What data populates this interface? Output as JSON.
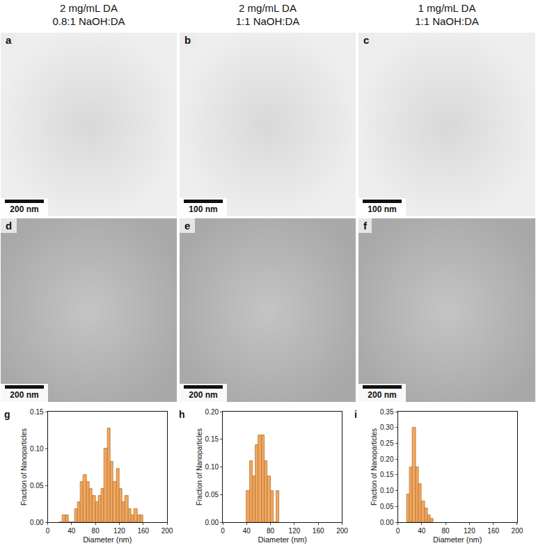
{
  "headers": [
    {
      "lines": [
        "2 mg/mL DA",
        "0.8:1 NaOH:DA"
      ]
    },
    {
      "lines": [
        "2 mg/mL DA",
        "1:1 NaOH:DA"
      ]
    },
    {
      "lines": [
        "1 mg/mL DA",
        "1:1 NaOH:DA"
      ]
    }
  ],
  "images": [
    {
      "panel": "a",
      "scale_bar": "200 nm"
    },
    {
      "panel": "b",
      "scale_bar": "100 nm"
    },
    {
      "panel": "c",
      "scale_bar": "100 nm"
    },
    {
      "panel": "d",
      "scale_bar": "200 nm"
    },
    {
      "panel": "e",
      "scale_bar": "200 nm"
    },
    {
      "panel": "f",
      "scale_bar": "200 nm"
    }
  ],
  "chart_data": [
    {
      "type": "bar",
      "panel": "g",
      "x_label": "Diameter (nm)",
      "y_label": "Fraction of Nanoparticles",
      "bins": [
        20,
        25,
        30,
        35,
        40,
        45,
        50,
        55,
        60,
        65,
        70,
        75,
        80,
        85,
        90,
        95,
        100,
        105,
        110,
        115,
        120,
        125,
        130,
        135,
        140,
        145,
        150,
        155,
        160
      ],
      "values": [
        0,
        0.009,
        0.009,
        0,
        0,
        0.018,
        0.027,
        0.055,
        0.064,
        0.055,
        0.045,
        0.036,
        0.027,
        0.036,
        0.045,
        0.1,
        0.127,
        0.082,
        0.055,
        0.073,
        0.045,
        0.027,
        0.036,
        0.018,
        0.009,
        0.018,
        0.009,
        0.009
      ],
      "color": "#f0a860",
      "xlim": [
        0,
        200
      ],
      "xticks": [
        0,
        40,
        80,
        120,
        160,
        200
      ],
      "ylim": [
        0,
        0.15
      ],
      "yticks": [
        {
          "value": 0,
          "label": "0.00"
        },
        {
          "value": 0.05,
          "label": "0.05"
        },
        {
          "value": 0.1,
          "label": "0.10"
        },
        {
          "value": 0.15,
          "label": "0.15"
        }
      ],
      "grid": false
    },
    {
      "type": "bar",
      "panel": "h",
      "x_label": "Diameter (nm)",
      "y_label": "Fraction of Nanoparticles",
      "bins": [
        40,
        45,
        50,
        55,
        60,
        65,
        70,
        75,
        80,
        85,
        90,
        95
      ],
      "values": [
        0.056,
        0.111,
        0.083,
        0.139,
        0.157,
        0.157,
        0.111,
        0.083,
        0.056,
        0,
        0.056
      ],
      "color": "#f0a860",
      "xlim": [
        0,
        200
      ],
      "xticks": [
        0,
        40,
        80,
        120,
        160,
        200
      ],
      "ylim": [
        0,
        0.2
      ],
      "yticks": [
        {
          "value": 0,
          "label": "0.00"
        },
        {
          "value": 0.05,
          "label": "0.05"
        },
        {
          "value": 0.1,
          "label": "0.10"
        },
        {
          "value": 0.15,
          "label": "0.15"
        },
        {
          "value": 0.2,
          "label": "0.20"
        }
      ],
      "grid": false
    },
    {
      "type": "bar",
      "panel": "i",
      "x_label": "Diameter (nm)",
      "y_label": "Fraction of Nanoparticles",
      "bins": [
        15,
        20,
        25,
        30,
        35,
        40,
        45,
        50,
        55,
        60
      ],
      "values": [
        0.087,
        0.174,
        0.3,
        0.174,
        0.12,
        0.065,
        0.043,
        0.022,
        0.011
      ],
      "color": "#f0a860",
      "xlim": [
        0,
        200
      ],
      "xticks": [
        0,
        40,
        80,
        120,
        160,
        200
      ],
      "ylim": [
        0,
        0.35
      ],
      "yticks": [
        {
          "value": 0,
          "label": "0.00"
        },
        {
          "value": 0.05,
          "label": "0.05"
        },
        {
          "value": 0.1,
          "label": "0.10"
        },
        {
          "value": 0.15,
          "label": "0.15"
        },
        {
          "value": 0.2,
          "label": "0.20"
        },
        {
          "value": 0.25,
          "label": "0.25"
        },
        {
          "value": 0.3,
          "label": "0.30"
        },
        {
          "value": 0.35,
          "label": "0.35"
        }
      ],
      "grid": false
    }
  ]
}
